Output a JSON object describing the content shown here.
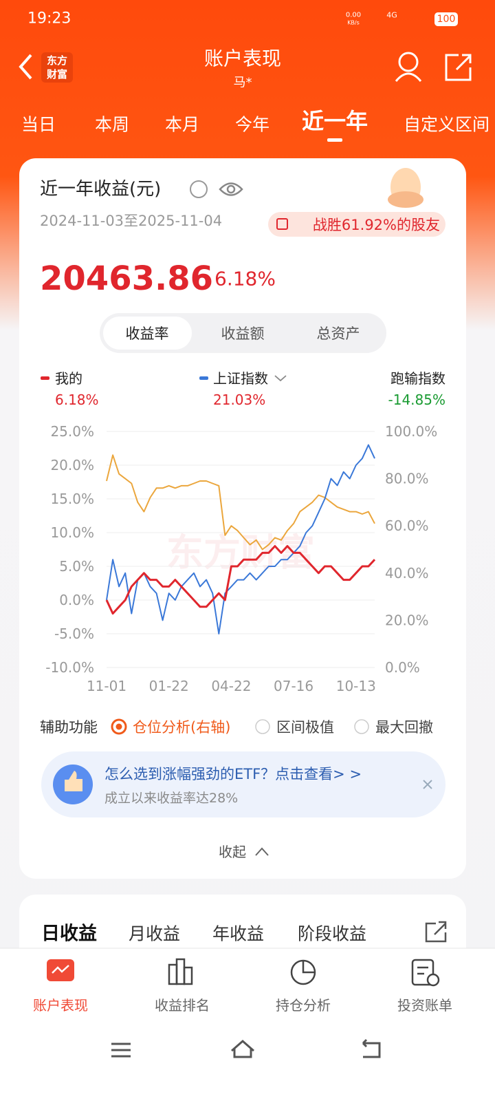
{
  "status_bar": {
    "time": "19:23",
    "speed": "0.00",
    "speed_unit": "KB/s",
    "network": "4G",
    "battery": "100"
  },
  "header": {
    "title": "账户表现",
    "subtitle": "马*",
    "logo": [
      "东方",
      "财富"
    ]
  },
  "period_tabs": [
    "当日",
    "本周",
    "本月",
    "今年",
    "近一年",
    "自定义区间"
  ],
  "period_active": 4,
  "card": {
    "title": "近一年收益(元)",
    "date_range": "2024-11-03至2025-11-04",
    "rank": "战胜61.92%的股友",
    "amount": "20463.86",
    "rate": "6.18%",
    "modes": [
      "收益率",
      "收益额",
      "总资产"
    ]
  },
  "chart_data": {
    "type": "line",
    "categories": [
      "11-01",
      null,
      null,
      null,
      null,
      null,
      null,
      null,
      null,
      null,
      "01-22",
      null,
      null,
      null,
      null,
      null,
      null,
      null,
      null,
      null,
      "04-22",
      null,
      null,
      null,
      null,
      null,
      null,
      null,
      null,
      null,
      "07-16",
      null,
      null,
      null,
      null,
      null,
      null,
      null,
      null,
      null,
      "10-13",
      null,
      null,
      null
    ],
    "series": [
      {
        "name": "我的",
        "stat": "6.18%",
        "color": "#e0262d",
        "values": [
          0,
          -2,
          -1,
          0,
          2,
          3,
          4,
          3,
          3,
          2,
          2,
          3,
          2,
          1,
          0,
          -1,
          -1,
          0,
          1,
          0,
          5,
          5,
          6,
          6,
          6,
          7,
          7,
          8,
          7,
          8,
          7,
          7,
          6,
          5,
          4,
          5,
          5,
          4,
          3,
          3,
          4,
          5,
          5,
          6
        ]
      },
      {
        "name": "上证指数",
        "stat": "21.03%",
        "color": "#3a78d8",
        "values": [
          0,
          6,
          2,
          4,
          -2,
          3,
          4,
          2,
          1,
          -3,
          1,
          0,
          2,
          3,
          4,
          2,
          3,
          1,
          -5,
          1,
          2,
          3,
          3,
          4,
          3,
          4,
          5,
          5,
          6,
          6,
          7,
          8,
          10,
          11,
          13,
          15,
          18,
          17,
          19,
          18,
          20,
          21,
          23,
          21
        ]
      },
      {
        "color": "#eba63c",
        "axis": "y2",
        "values": [
          79,
          90,
          82,
          80,
          78,
          70,
          66,
          72,
          76,
          76,
          77,
          76,
          77,
          77,
          78,
          79,
          79,
          78,
          77,
          56,
          60,
          58,
          55,
          52,
          54,
          50,
          52,
          55,
          54,
          58,
          61,
          66,
          68,
          70,
          73,
          72,
          70,
          68,
          67,
          66,
          66,
          65,
          66,
          61
        ]
      }
    ],
    "comparison": {
      "name": "跑输指数",
      "stat": "-14.85%"
    },
    "watermark": "东方财富",
    "ylim": [
      -10,
      25
    ],
    "yticks": [
      {
        "value": -10,
        "label": "-10.0%"
      },
      {
        "value": -5,
        "label": "-5.0%"
      },
      {
        "value": 0,
        "label": "0.0%"
      },
      {
        "value": 5,
        "label": "5.0%"
      },
      {
        "value": 10,
        "label": "10.0%"
      },
      {
        "value": 15,
        "label": "15.0%"
      },
      {
        "value": 20,
        "label": "20.0%"
      },
      {
        "value": 25,
        "label": "25.0%"
      }
    ],
    "y2lim": [
      0,
      100
    ],
    "y2ticks": [
      {
        "value": 0,
        "label": "0.0%"
      },
      {
        "value": 20,
        "label": "20.0%"
      },
      {
        "value": 40,
        "label": "40.0%"
      },
      {
        "value": 60,
        "label": "60.0%"
      },
      {
        "value": 80,
        "label": "80.0%"
      },
      {
        "value": 100,
        "label": "100.0%"
      }
    ],
    "grid": true
  },
  "aux": {
    "label": "辅助功能",
    "options": [
      "仓位分析(右轴)",
      "区间极值",
      "最大回撤"
    ],
    "selected": 0
  },
  "banner": {
    "title": "怎么选到涨幅强劲的ETF？点击查看> >",
    "subtitle": "成立以来收益率达28%"
  },
  "collapse": "收起",
  "detail_tabs": [
    "日收益",
    "月收益",
    "年收益",
    "阶段收益"
  ],
  "bottom_nav": [
    "账户表现",
    "收益排名",
    "持仓分析",
    "投资账单"
  ],
  "bottom_active": 0
}
